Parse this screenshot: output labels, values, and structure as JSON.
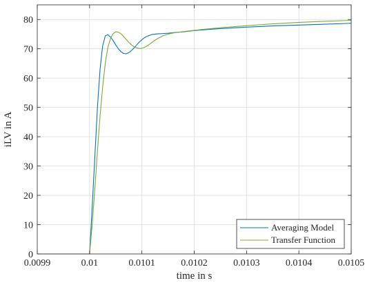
{
  "chart_data": {
    "type": "line",
    "title": "",
    "xlabel": "time in s",
    "ylabel": "iLV in A",
    "xlim": [
      0.0099,
      0.0105
    ],
    "ylim": [
      0,
      85
    ],
    "xticks": [
      "0.0099",
      "0.01",
      "0.0101",
      "0.0102",
      "0.0103",
      "0.0104",
      "0.0105"
    ],
    "xtick_values": [
      0.0099,
      0.01,
      0.0101,
      0.0102,
      0.0103,
      0.0104,
      0.0105
    ],
    "yticks": [
      "0",
      "10",
      "20",
      "30",
      "40",
      "50",
      "60",
      "70",
      "80"
    ],
    "ytick_values": [
      0,
      10,
      20,
      30,
      40,
      50,
      60,
      70,
      80
    ],
    "grid": true,
    "legend_position": "bottom-right",
    "series": [
      {
        "name": "Averaging Model",
        "color": "#0072BD",
        "x": [
          0.0099,
          0.01,
          0.010005,
          0.01001,
          0.010015,
          0.01002,
          0.010025,
          0.01003,
          0.010035,
          0.01004,
          0.010045,
          0.01005,
          0.010055,
          0.01006,
          0.010065,
          0.01007,
          0.010075,
          0.01008,
          0.010085,
          0.01009,
          0.010095,
          0.0101,
          0.010105,
          0.01011,
          0.01012,
          0.01013,
          0.01014,
          0.01015,
          0.01016,
          0.01018,
          0.0102,
          0.01022,
          0.01025,
          0.0103,
          0.01035,
          0.0104,
          0.01045,
          0.0105
        ],
        "y": [
          0,
          0,
          16,
          33,
          50,
          63,
          71,
          74.4,
          74.8,
          74,
          72.8,
          71.3,
          70,
          69,
          68.4,
          68.3,
          68.7,
          69.4,
          70.3,
          71.3,
          72.3,
          73.1,
          73.8,
          74.3,
          74.9,
          75.1,
          75.2,
          75.3,
          75.5,
          75.8,
          76.2,
          76.5,
          76.9,
          77.4,
          77.8,
          78.1,
          78.4,
          78.7
        ]
      },
      {
        "name": "Transfer Function",
        "color": "#77AC30",
        "x": [
          0.0099,
          0.01,
          0.010005,
          0.01001,
          0.010015,
          0.01002,
          0.010025,
          0.01003,
          0.010035,
          0.01004,
          0.010045,
          0.01005,
          0.010055,
          0.01006,
          0.010065,
          0.01007,
          0.010075,
          0.01008,
          0.010085,
          0.01009,
          0.010095,
          0.0101,
          0.010105,
          0.01011,
          0.010115,
          0.01012,
          0.010125,
          0.01013,
          0.01014,
          0.01015,
          0.01016,
          0.01018,
          0.0102,
          0.01022,
          0.01025,
          0.0103,
          0.01035,
          0.0104,
          0.01045,
          0.0105
        ],
        "y": [
          0,
          0,
          10,
          22,
          35,
          47,
          57,
          65,
          70.5,
          73.5,
          75.2,
          75.8,
          75.7,
          75.1,
          74.2,
          73.2,
          72.2,
          71.3,
          70.7,
          70.3,
          70.1,
          70.2,
          70.5,
          71,
          71.6,
          72.3,
          72.9,
          73.5,
          74.4,
          75,
          75.4,
          75.9,
          76.3,
          76.7,
          77.2,
          77.9,
          78.5,
          79,
          79.4,
          79.7
        ]
      }
    ]
  }
}
